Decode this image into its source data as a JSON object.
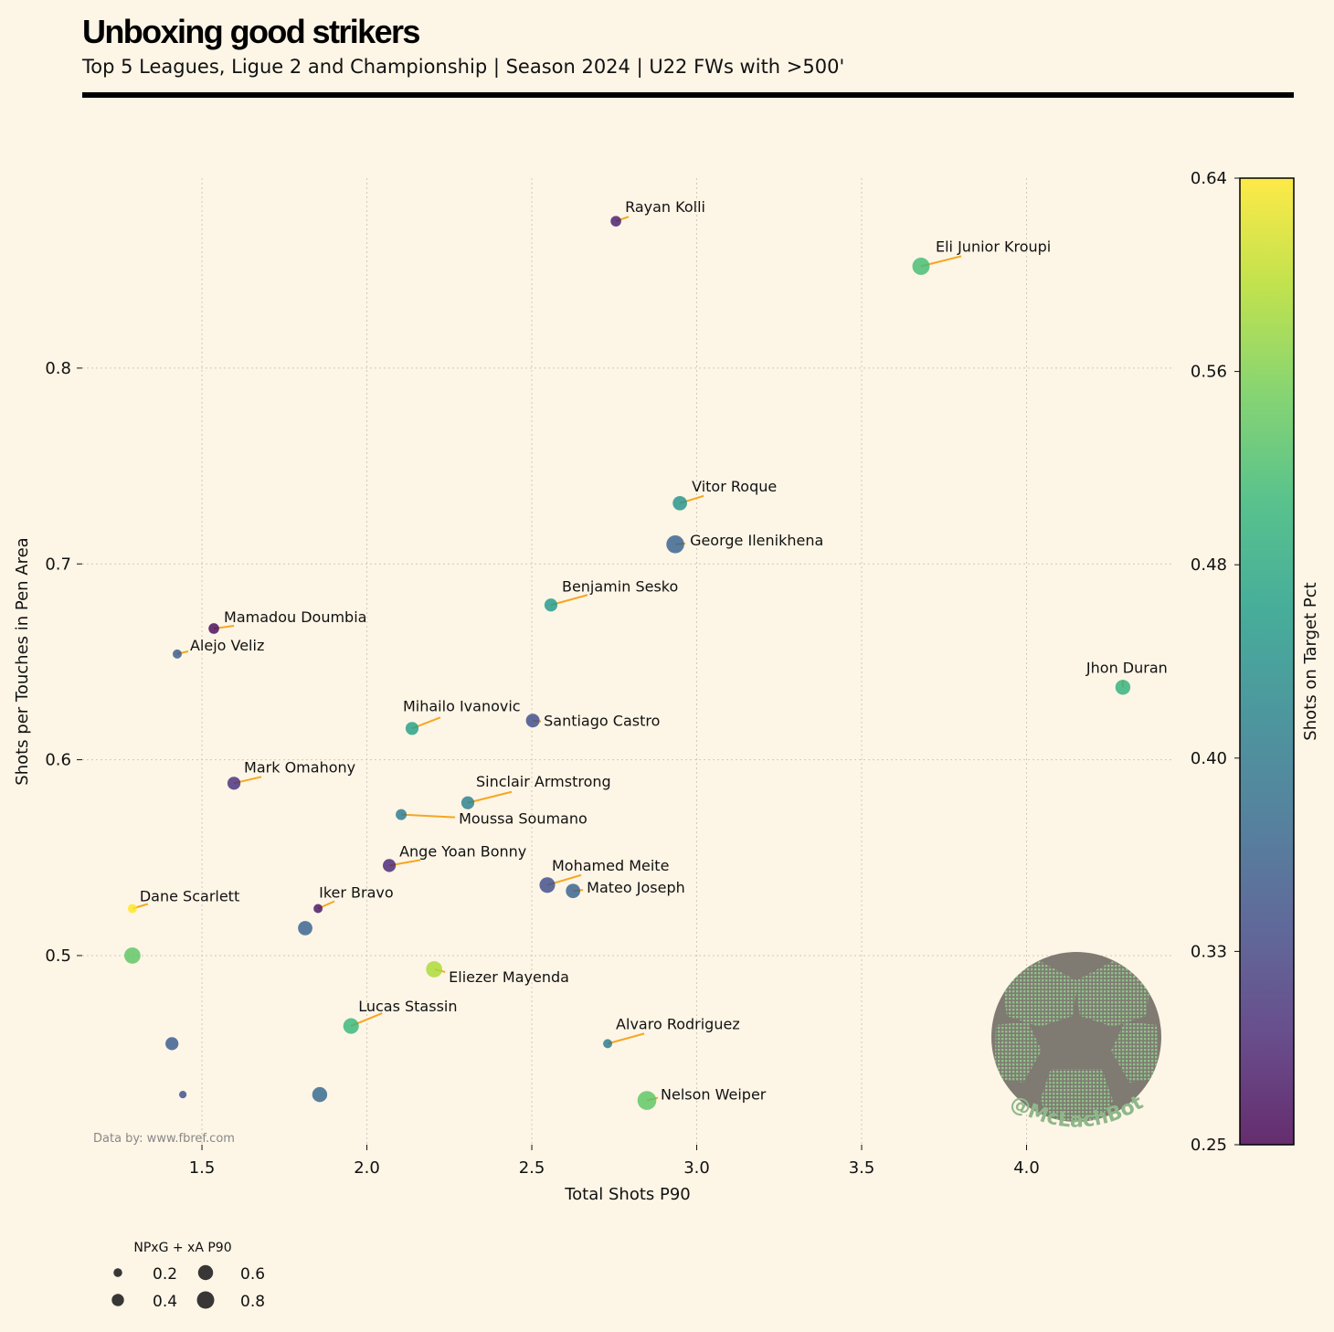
{
  "header": {
    "title": "Unboxing good strikers",
    "subtitle": "Top 5 Leagues, Ligue 2 and Championship | Season 2024 | U22 FWs with >500'"
  },
  "source_note": "Data by: www.fbref.com",
  "logo": {
    "text": "@McLachBot"
  },
  "chart_data": {
    "type": "scatter",
    "title": "Unboxing good strikers",
    "xlabel": "Total Shots P90",
    "ylabel": "Shots per Touches in Pen Area",
    "xlim": [
      1.137,
      4.439
    ],
    "ylim": [
      0.4034,
      0.897
    ],
    "xticks": [
      1.5,
      2.0,
      2.5,
      3.0,
      3.5,
      4.0
    ],
    "xtick_labels": [
      "1.5",
      "2.0",
      "2.5",
      "3.0",
      "3.5",
      "4.0"
    ],
    "yticks": [
      0.5,
      0.6,
      0.7,
      0.8
    ],
    "ytick_labels": [
      "0.5",
      "0.6",
      "0.7",
      "0.8"
    ],
    "grid": true,
    "colorbar": {
      "label": "Shots on Target Pct",
      "range": [
        0.25,
        0.64
      ],
      "tick_labels": [
        "0.25",
        "0.33",
        "0.40",
        "0.48",
        "0.56",
        "0.64"
      ],
      "colormap": "viridis"
    },
    "size_legend": {
      "title": "NPxG + xA P90",
      "values": [
        0.2,
        0.4,
        0.6,
        0.8
      ],
      "labels": [
        "0.2",
        "0.4",
        "0.6",
        "0.8"
      ],
      "placement": "bottom-left"
    },
    "annotation_line_color": "#f5a623",
    "points": [
      {
        "name": "Rayan Kolli",
        "x": 2.755,
        "y": 0.875,
        "color_value": 0.28,
        "size_value": 0.3
      },
      {
        "name": "Eli Junior Kroupi",
        "x": 3.68,
        "y": 0.852,
        "color_value": 0.52,
        "size_value": 0.8
      },
      {
        "name": "Vitor Roque",
        "x": 2.949,
        "y": 0.731,
        "color_value": 0.45,
        "size_value": 0.55
      },
      {
        "name": "George Ilenikhena",
        "x": 2.935,
        "y": 0.71,
        "color_value": 0.37,
        "size_value": 0.85
      },
      {
        "name": "Benjamin Sesko",
        "x": 2.558,
        "y": 0.679,
        "color_value": 0.46,
        "size_value": 0.45
      },
      {
        "name": "Mamadou Doumbia",
        "x": 1.536,
        "y": 0.667,
        "color_value": 0.26,
        "size_value": 0.3
      },
      {
        "name": "Alejo Veliz",
        "x": 1.425,
        "y": 0.654,
        "color_value": 0.36,
        "size_value": 0.22
      },
      {
        "name": "Jhon Duran",
        "x": 4.292,
        "y": 0.637,
        "color_value": 0.5,
        "size_value": 0.6
      },
      {
        "name": "Mihailo Ivanovic",
        "x": 2.137,
        "y": 0.616,
        "color_value": 0.47,
        "size_value": 0.45
      },
      {
        "name": "Santiago Castro",
        "x": 2.503,
        "y": 0.62,
        "color_value": 0.34,
        "size_value": 0.5
      },
      {
        "name": "Mark Omahony",
        "x": 1.597,
        "y": 0.588,
        "color_value": 0.3,
        "size_value": 0.45
      },
      {
        "name": "Sinclair Armstrong",
        "x": 2.306,
        "y": 0.578,
        "color_value": 0.42,
        "size_value": 0.45
      },
      {
        "name": "Moussa Soumano",
        "x": 2.104,
        "y": 0.572,
        "color_value": 0.41,
        "size_value": 0.32
      },
      {
        "name": "Ange Yoan Bonny",
        "x": 2.068,
        "y": 0.546,
        "color_value": 0.29,
        "size_value": 0.45
      },
      {
        "name": "Mohamed Meite",
        "x": 2.547,
        "y": 0.536,
        "color_value": 0.34,
        "size_value": 0.65
      },
      {
        "name": "Mateo Joseph",
        "x": 2.625,
        "y": 0.533,
        "color_value": 0.37,
        "size_value": 0.55
      },
      {
        "name": "Dane Scarlett",
        "x": 1.289,
        "y": 0.524,
        "color_value": 0.64,
        "size_value": 0.22
      },
      {
        "name": "Iker Bravo",
        "x": 1.852,
        "y": 0.524,
        "color_value": 0.27,
        "size_value": 0.22
      },
      {
        "name": "",
        "x": 1.813,
        "y": 0.514,
        "color_value": 0.37,
        "size_value": 0.55
      },
      {
        "name": "",
        "x": 1.289,
        "y": 0.5,
        "color_value": 0.54,
        "size_value": 0.7
      },
      {
        "name": "Eliezer Mayenda",
        "x": 2.204,
        "y": 0.493,
        "color_value": 0.59,
        "size_value": 0.7
      },
      {
        "name": "Lucas Stassin",
        "x": 1.952,
        "y": 0.464,
        "color_value": 0.51,
        "size_value": 0.65
      },
      {
        "name": "Alvaro Rodriguez",
        "x": 2.73,
        "y": 0.455,
        "color_value": 0.41,
        "size_value": 0.22
      },
      {
        "name": "",
        "x": 1.409,
        "y": 0.455,
        "color_value": 0.36,
        "size_value": 0.45
      },
      {
        "name": "",
        "x": 1.442,
        "y": 0.429,
        "color_value": 0.34,
        "size_value": 0.15
      },
      {
        "name": "",
        "x": 1.857,
        "y": 0.429,
        "color_value": 0.38,
        "size_value": 0.6
      },
      {
        "name": "Nelson Weiper",
        "x": 2.849,
        "y": 0.426,
        "color_value": 0.54,
        "size_value": 0.95
      }
    ]
  }
}
